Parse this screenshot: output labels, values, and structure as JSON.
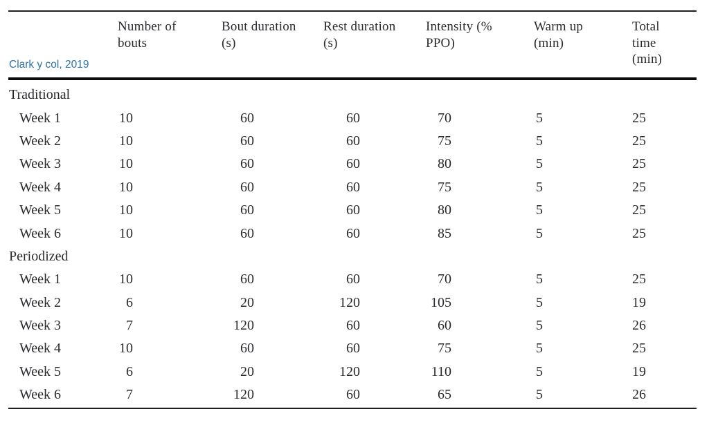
{
  "citation": {
    "label": "Clark y col, 2019"
  },
  "colors": {
    "citation_blue": "#2e74a8",
    "text": "#2a2a2e",
    "rule_thin": "#1f1f1f",
    "rule_thick": "#0c0c0c",
    "background": "#ffffff"
  },
  "table": {
    "columns": [
      {
        "id": "row-label",
        "lines": []
      },
      {
        "id": "bouts",
        "lines": [
          "Number of",
          "bouts"
        ]
      },
      {
        "id": "bout-duration",
        "lines": [
          "Bout duration",
          "(s)"
        ]
      },
      {
        "id": "rest-duration",
        "lines": [
          "Rest duration",
          "(s)"
        ]
      },
      {
        "id": "intensity",
        "lines": [
          "Intensity (%",
          "PPO)"
        ]
      },
      {
        "id": "warm-up",
        "lines": [
          "Warm up",
          "(min)"
        ]
      },
      {
        "id": "total-time",
        "lines": [
          "Total",
          "time",
          "(min)"
        ]
      }
    ],
    "sections": [
      {
        "name": "Traditional",
        "rows": [
          {
            "label": "Week 1",
            "values": [
              "10",
              "60",
              "60",
              "70",
              "5",
              "25"
            ]
          },
          {
            "label": "Week 2",
            "values": [
              "10",
              "60",
              "60",
              "75",
              "5",
              "25"
            ]
          },
          {
            "label": "Week 3",
            "values": [
              "10",
              "60",
              "60",
              "80",
              "5",
              "25"
            ]
          },
          {
            "label": "Week 4",
            "values": [
              "10",
              "60",
              "60",
              "75",
              "5",
              "25"
            ]
          },
          {
            "label": "Week 5",
            "values": [
              "10",
              "60",
              "60",
              "80",
              "5",
              "25"
            ]
          },
          {
            "label": "Week 6",
            "values": [
              "10",
              "60",
              "60",
              "85",
              "5",
              "25"
            ]
          }
        ]
      },
      {
        "name": "Periodized",
        "rows": [
          {
            "label": "Week 1",
            "values": [
              "10",
              "60",
              "60",
              "70",
              "5",
              "25"
            ]
          },
          {
            "label": "Week 2",
            "values": [
              "6",
              "20",
              "120",
              "105",
              "5",
              "19"
            ]
          },
          {
            "label": "Week 3",
            "values": [
              "7",
              "120",
              "60",
              "60",
              "5",
              "26"
            ]
          },
          {
            "label": "Week 4",
            "values": [
              "10",
              "60",
              "60",
              "75",
              "5",
              "25"
            ]
          },
          {
            "label": "Week 5",
            "values": [
              "6",
              "20",
              "120",
              "110",
              "5",
              "19"
            ]
          },
          {
            "label": "Week 6",
            "values": [
              "7",
              "120",
              "60",
              "65",
              "5",
              "26"
            ]
          }
        ]
      }
    ]
  }
}
